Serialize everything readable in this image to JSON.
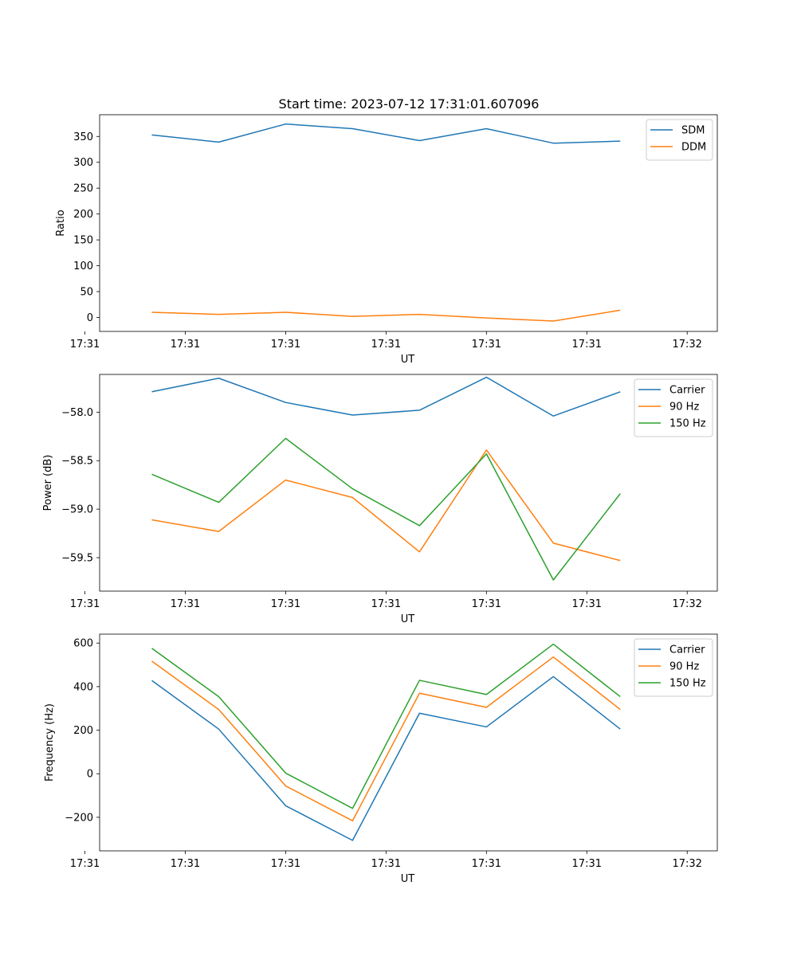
{
  "title": "Start time: 2023-07-12 17:31:01.607096",
  "chart_data": [
    {
      "type": "line",
      "title": "Start time: 2023-07-12 17:31:01.607096",
      "xlabel": "UT",
      "ylabel": "Ratio",
      "x": [
        1,
        2,
        3,
        4,
        5,
        6,
        7,
        8
      ],
      "xlim": [
        0.22,
        9.45
      ],
      "ylim": [
        -27,
        392
      ],
      "xticks": [
        {
          "v": 0,
          "label": "17:31"
        },
        {
          "v": 1.5,
          "label": "17:31"
        },
        {
          "v": 3,
          "label": "17:31"
        },
        {
          "v": 4.5,
          "label": "17:31"
        },
        {
          "v": 6,
          "label": "17:31"
        },
        {
          "v": 7.5,
          "label": "17:31"
        },
        {
          "v": 9,
          "label": "17:32"
        }
      ],
      "yticks": [
        {
          "v": 0,
          "label": "0"
        },
        {
          "v": 50,
          "label": "50"
        },
        {
          "v": 100,
          "label": "100"
        },
        {
          "v": 150,
          "label": "150"
        },
        {
          "v": 200,
          "label": "200"
        },
        {
          "v": 250,
          "label": "250"
        },
        {
          "v": 300,
          "label": "300"
        },
        {
          "v": 350,
          "label": "350"
        }
      ],
      "legend_position": "top-right",
      "series": [
        {
          "name": "SDM",
          "color": "#1f77b4",
          "values": [
            353,
            339,
            374,
            365,
            342,
            365,
            337,
            341
          ]
        },
        {
          "name": "DDM",
          "color": "#ff7f0e",
          "values": [
            10,
            6,
            10,
            2,
            6,
            -1,
            -7,
            14
          ]
        }
      ]
    },
    {
      "type": "line",
      "title": "",
      "xlabel": "UT",
      "ylabel": "Power (dB)",
      "x": [
        1,
        2,
        3,
        4,
        5,
        6,
        7,
        8
      ],
      "xlim": [
        0.22,
        9.45
      ],
      "ylim": [
        -59.845,
        -57.611
      ],
      "xticks": [
        {
          "v": 0,
          "label": "17:31"
        },
        {
          "v": 1.5,
          "label": "17:31"
        },
        {
          "v": 3,
          "label": "17:31"
        },
        {
          "v": 4.5,
          "label": "17:31"
        },
        {
          "v": 6,
          "label": "17:31"
        },
        {
          "v": 7.5,
          "label": "17:31"
        },
        {
          "v": 9,
          "label": "17:32"
        }
      ],
      "yticks": [
        {
          "v": -59.5,
          "label": "−59.5"
        },
        {
          "v": -59.0,
          "label": "−59.0"
        },
        {
          "v": -58.5,
          "label": "−58.5"
        },
        {
          "v": -58.0,
          "label": "−58.0"
        }
      ],
      "legend_position": "top-right",
      "series": [
        {
          "name": "Carrier",
          "color": "#1f77b4",
          "values": [
            -57.79,
            -57.65,
            -57.9,
            -58.03,
            -57.98,
            -57.64,
            -58.04,
            -57.79
          ]
        },
        {
          "name": "90 Hz",
          "color": "#ff7f0e",
          "values": [
            -59.11,
            -59.23,
            -58.7,
            -58.88,
            -59.44,
            -58.39,
            -59.35,
            -59.53
          ]
        },
        {
          "name": "150 Hz",
          "color": "#2ca02c",
          "values": [
            -58.64,
            -58.93,
            -58.27,
            -58.79,
            -59.17,
            -58.43,
            -59.73,
            -58.84
          ]
        }
      ]
    },
    {
      "type": "line",
      "title": "",
      "xlabel": "UT",
      "ylabel": "Frequency (Hz)",
      "x": [
        1,
        2,
        3,
        4,
        5,
        6,
        7,
        8
      ],
      "xlim": [
        0.22,
        9.45
      ],
      "ylim": [
        -354,
        641
      ],
      "xticks": [
        {
          "v": 0,
          "label": "17:31"
        },
        {
          "v": 1.5,
          "label": "17:31"
        },
        {
          "v": 3,
          "label": "17:31"
        },
        {
          "v": 4.5,
          "label": "17:31"
        },
        {
          "v": 6,
          "label": "17:31"
        },
        {
          "v": 7.5,
          "label": "17:31"
        },
        {
          "v": 9,
          "label": "17:32"
        }
      ],
      "yticks": [
        {
          "v": -200,
          "label": "−200"
        },
        {
          "v": 0,
          "label": "0"
        },
        {
          "v": 200,
          "label": "200"
        },
        {
          "v": 400,
          "label": "400"
        },
        {
          "v": 600,
          "label": "600"
        }
      ],
      "legend_position": "top-right",
      "series": [
        {
          "name": "Carrier",
          "color": "#1f77b4",
          "values": [
            428,
            205,
            -147,
            -306,
            278,
            215,
            446,
            205
          ]
        },
        {
          "name": "90 Hz",
          "color": "#ff7f0e",
          "values": [
            517,
            295,
            -56,
            -216,
            370,
            305,
            536,
            295
          ]
        },
        {
          "name": "150 Hz",
          "color": "#2ca02c",
          "values": [
            576,
            354,
            3,
            -159,
            429,
            364,
            595,
            354
          ]
        }
      ]
    }
  ]
}
